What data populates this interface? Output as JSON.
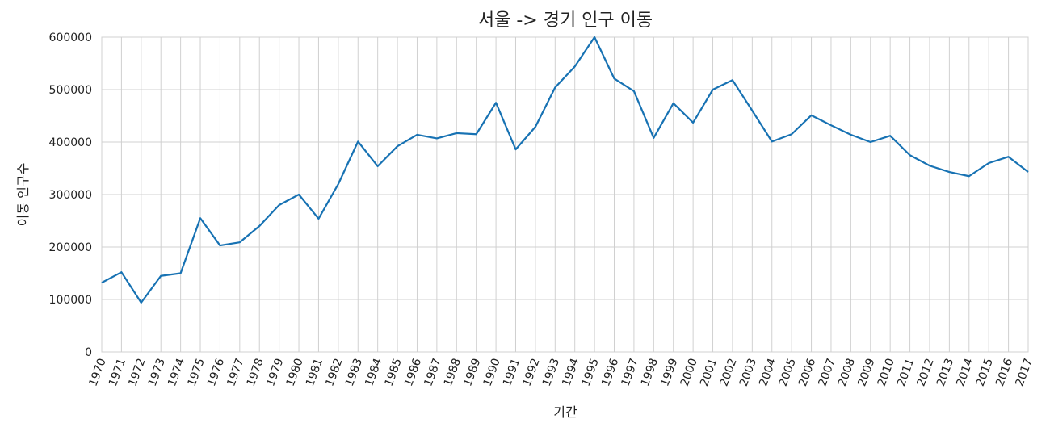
{
  "chart_data": {
    "type": "line",
    "title": "서울 -> 경기 인구 이동",
    "x_label": "기간",
    "y_label": "이동 인구수",
    "categories": [
      "1970",
      "1971",
      "1972",
      "1973",
      "1974",
      "1975",
      "1976",
      "1977",
      "1978",
      "1979",
      "1980",
      "1981",
      "1982",
      "1983",
      "1984",
      "1985",
      "1986",
      "1987",
      "1988",
      "1989",
      "1990",
      "1991",
      "1992",
      "1993",
      "1994",
      "1995",
      "1996",
      "1997",
      "1998",
      "1999",
      "2000",
      "2001",
      "2002",
      "2003",
      "2004",
      "2005",
      "2006",
      "2007",
      "2008",
      "2009",
      "2010",
      "2011",
      "2012",
      "2013",
      "2014",
      "2015",
      "2016",
      "2017"
    ],
    "series": [
      {
        "name": "서울 -> 경기",
        "color": "#1772b3",
        "values": [
          132000,
          152000,
          94000,
          145000,
          150000,
          255000,
          203000,
          209000,
          240000,
          280000,
          300000,
          254000,
          320000,
          401000,
          354000,
          392000,
          414000,
          407000,
          417000,
          415000,
          475000,
          386000,
          429000,
          504000,
          544000,
          600000,
          521000,
          497000,
          408000,
          474000,
          437000,
          500000,
          518000,
          460000,
          401000,
          415000,
          451000,
          432000,
          414000,
          400000,
          412000,
          375000,
          355000,
          343000,
          335000,
          360000,
          372000,
          343000
        ]
      }
    ],
    "ylim": [
      0,
      600000
    ],
    "yticks": [
      0,
      100000,
      200000,
      300000,
      400000,
      500000,
      600000
    ],
    "grid": true
  }
}
